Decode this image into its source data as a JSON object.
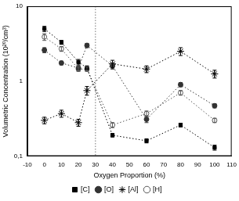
{
  "chart_data": {
    "type": "line",
    "x_label": "Oxygen Proportion (%)",
    "y_label": "Volumetric Concentration (10²⁰/cm³)",
    "x": [
      0,
      10,
      20,
      25,
      40,
      60,
      80,
      100
    ],
    "series": [
      {
        "name": "[C]",
        "color": "#000000",
        "marker": "square",
        "line_style": "dotted",
        "values": [
          5.0,
          3.3,
          1.8,
          1.5,
          0.19,
          0.16,
          0.26,
          0.13
        ],
        "errors": [
          0.4,
          0.2,
          0.15,
          0.1,
          0.01,
          0.01,
          0.015,
          0.01
        ]
      },
      {
        "name": "[O]",
        "color": "#333333",
        "marker": "circle",
        "line_style": "dotted",
        "values": [
          2.6,
          1.75,
          1.5,
          3.0,
          1.6,
          0.31,
          0.9,
          0.47
        ],
        "errors": [
          0.2,
          0.1,
          0.1,
          0.2,
          0.15,
          0.03,
          0.06,
          0.03
        ]
      },
      {
        "name": "[Al]",
        "color": "#000000",
        "marker": "star",
        "line_style": "dotted",
        "values": [
          0.3,
          0.37,
          0.28,
          0.75,
          1.7,
          1.45,
          2.5,
          1.25
        ],
        "errors": [
          0.03,
          0.04,
          0.03,
          0.1,
          0.2,
          0.15,
          0.3,
          0.15
        ]
      },
      {
        "name": "[H]",
        "color": "#555555",
        "marker": "open_circle",
        "line_style": "dotted",
        "values": [
          3.9,
          2.7,
          1.45,
          1.45,
          0.26,
          0.37,
          0.7,
          0.3
        ],
        "errors": [
          0.4,
          0.2,
          0.1,
          0.1,
          0.02,
          0.03,
          0.05,
          0.02
        ]
      }
    ],
    "vlines": [
      30
    ],
    "xlim": [
      -10,
      110
    ],
    "xticks": [
      -10,
      0,
      10,
      20,
      30,
      40,
      50,
      60,
      70,
      80,
      90,
      100,
      110
    ],
    "ylim": [
      0.1,
      10
    ],
    "yticks": [
      {
        "value": 0.1,
        "label": "0,1"
      },
      1,
      10
    ],
    "log": "y",
    "grid": false,
    "legend": "bottom"
  }
}
